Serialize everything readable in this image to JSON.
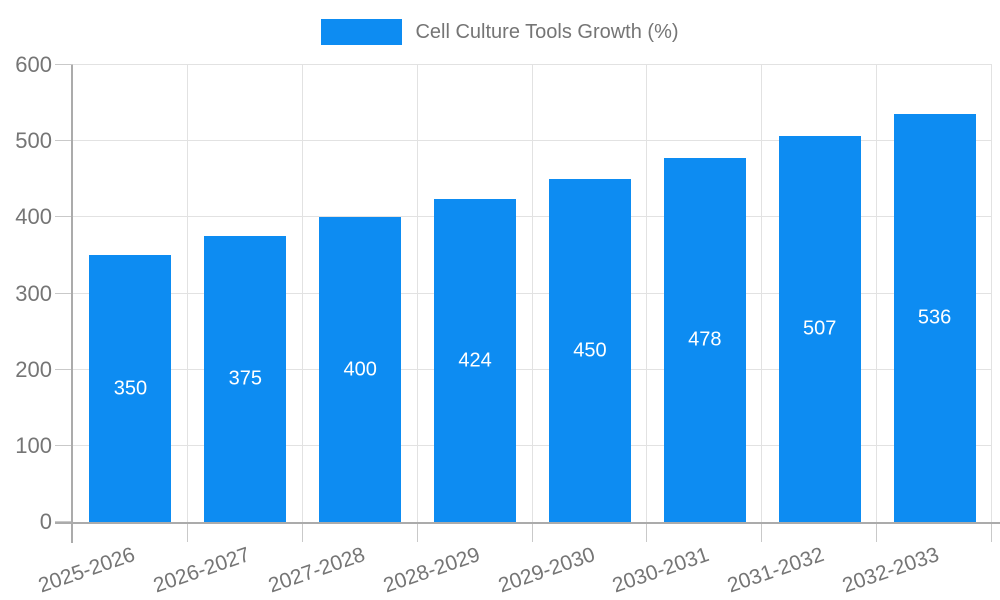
{
  "chart_data": {
    "type": "bar",
    "title": "",
    "xlabel": "",
    "ylabel": "",
    "categories": [
      "2025-2026",
      "2026-2027",
      "2027-2028",
      "2028-2029",
      "2029-2030",
      "2030-2031",
      "2031-2032",
      "2032-2033"
    ],
    "series": [
      {
        "name": "Cell Culture Tools Growth (%)",
        "values": [
          350,
          375,
          400,
          424,
          450,
          478,
          507,
          536
        ],
        "color": "#0d8cf2"
      }
    ],
    "ylim": [
      0,
      600
    ],
    "yticks": [
      0,
      100,
      200,
      300,
      400,
      500,
      600
    ],
    "grid": true,
    "legend_position": "top-center",
    "value_labels": "inside-middle",
    "x_label_rotation_deg": -19,
    "colors": {
      "bar": "#0d8cf2",
      "grid_line": "#e2e2e2",
      "axis_line": "#ababab",
      "tick_mark": "#c9c9c9",
      "axis_text": "#757575",
      "value_label": "#ffffff",
      "background": "#ffffff"
    }
  }
}
